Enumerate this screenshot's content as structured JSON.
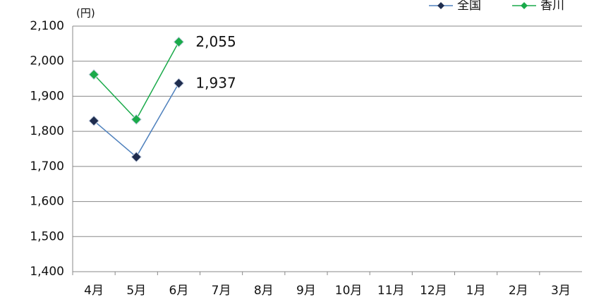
{
  "chart_data": {
    "type": "line",
    "unit_label": "(円)",
    "categories": [
      "4月",
      "5月",
      "6月",
      "7月",
      "8月",
      "9月",
      "10月",
      "11月",
      "12月",
      "1月",
      "2月",
      "3月"
    ],
    "series": [
      {
        "name": "全国",
        "color": "#4f81bd",
        "marker_color": "#1f2d4f",
        "values": [
          1830,
          1727,
          1937,
          null,
          null,
          null,
          null,
          null,
          null,
          null,
          null,
          null
        ],
        "value_labels": [
          null,
          null,
          "1,937",
          null,
          null,
          null,
          null,
          null,
          null,
          null,
          null,
          null
        ]
      },
      {
        "name": "香川",
        "color": "#1aaa4a",
        "marker_color": "#1aaa4a",
        "values": [
          1962,
          1834,
          2055,
          null,
          null,
          null,
          null,
          null,
          null,
          null,
          null,
          null
        ],
        "value_labels": [
          null,
          null,
          "2,055",
          null,
          null,
          null,
          null,
          null,
          null,
          null,
          null,
          null
        ]
      }
    ],
    "ylim": [
      1400,
      2100
    ],
    "yticks": [
      {
        "value": 1400,
        "label": "1,400"
      },
      {
        "value": 1500,
        "label": "1,500"
      },
      {
        "value": 1600,
        "label": "1,600"
      },
      {
        "value": 1700,
        "label": "1,700"
      },
      {
        "value": 1800,
        "label": "1,800"
      },
      {
        "value": 1900,
        "label": "1,900"
      },
      {
        "value": 2000,
        "label": "2,000"
      },
      {
        "value": 2100,
        "label": "2,100"
      }
    ],
    "grid": true,
    "legend": "top-right"
  }
}
